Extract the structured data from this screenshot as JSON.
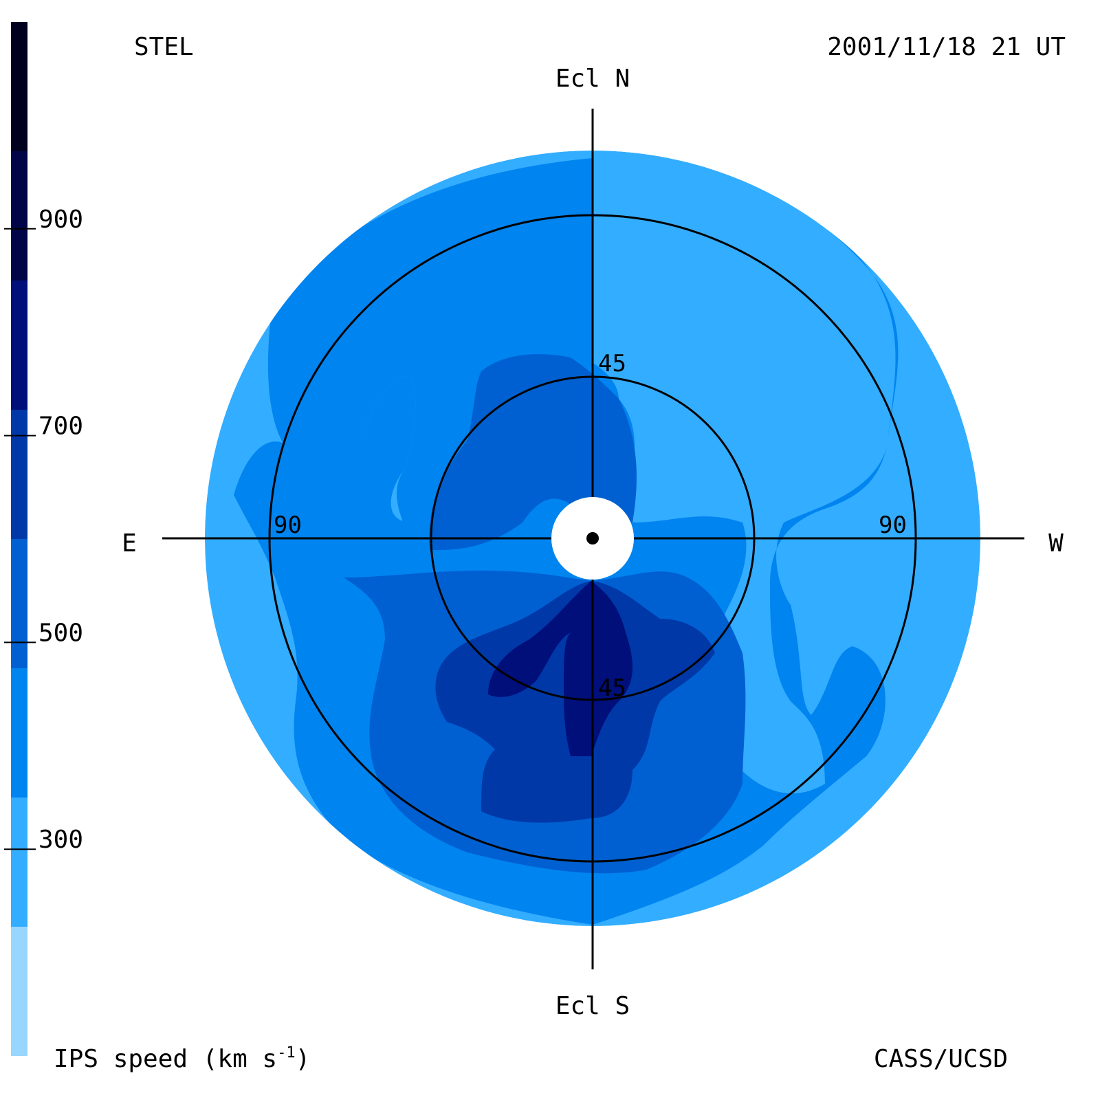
{
  "header": {
    "left_label": "STEL",
    "right_label": "2001/11/18 21 UT"
  },
  "footer": {
    "colorbar_label_prefix": "IPS speed (km s",
    "colorbar_label_sup": "-1",
    "colorbar_label_suffix": ")",
    "credit": "CASS/UCSD"
  },
  "colors": {
    "speed_bands": [
      "#99d6ff",
      "#33adff",
      "#0084f0",
      "#0060d1",
      "#0038a8",
      "#000f7a",
      "#000547",
      "#00001f"
    ],
    "axis": "#000000",
    "sun": "#ffffff"
  },
  "chart_data": {
    "type": "heatmap",
    "projection": "fisheye sky map of interplanetary scintillation solar wind speed, centered on the Sun",
    "colorbar": {
      "min": 100,
      "max": 1100,
      "band_step": 125,
      "tick_values": [
        300,
        500,
        700,
        900
      ],
      "tick_labels": [
        "300",
        "500",
        "700",
        "900"
      ]
    },
    "directions": {
      "north": "Ecl N",
      "south": "Ecl S",
      "east": "E",
      "west": "W"
    },
    "elongation_rings": [
      {
        "value": 45,
        "labels": [
          "45",
          "45"
        ]
      },
      {
        "value": 90,
        "labels": [
          "90",
          "90"
        ]
      }
    ],
    "outer_elongation": 108,
    "regions": [
      {
        "speed_band": 2,
        "description": "background across most of the disk"
      },
      {
        "speed_band": 1,
        "description": "outer fringe and low-speed lobes to east and west"
      },
      {
        "speed_band": 3,
        "description": "moderate-speed lobe north of Sun and broad southern region"
      },
      {
        "speed_band": 4,
        "description": "elevated-speed southern region"
      },
      {
        "speed_band": 5,
        "description": "high-speed streamer south of Sun"
      }
    ]
  }
}
